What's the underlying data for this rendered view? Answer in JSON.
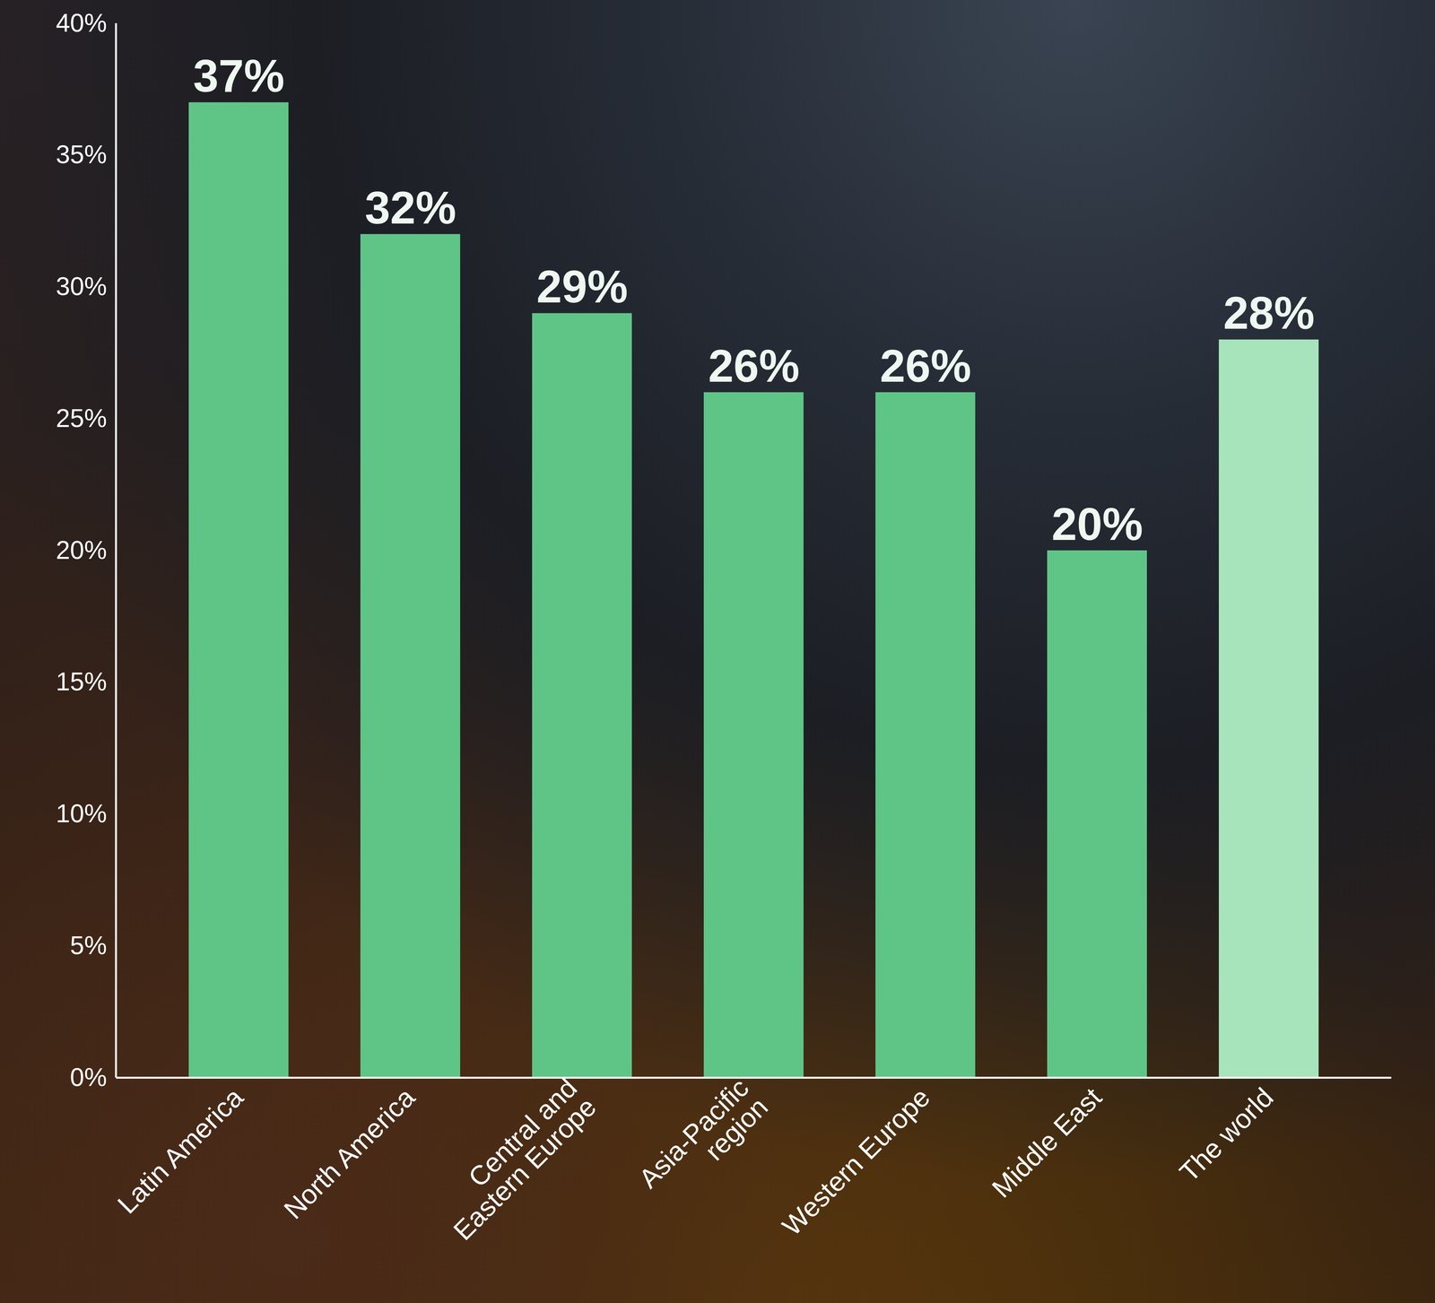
{
  "chart_data": {
    "type": "bar",
    "categories": [
      "Latin America",
      "North America",
      "Central and Eastern Europe",
      "Asia-Pacific region",
      "Western Europe",
      "Middle East",
      "The world"
    ],
    "values": [
      37,
      32,
      29,
      26,
      26,
      20,
      28
    ],
    "value_labels": [
      "37%",
      "32%",
      "29%",
      "26%",
      "26%",
      "20%",
      "28%"
    ],
    "colors": [
      "#5fc587",
      "#5fc587",
      "#5fc587",
      "#5fc587",
      "#5fc587",
      "#5fc587",
      "#a8e4bb"
    ],
    "ylim": [
      0,
      40
    ],
    "yticks": [
      {
        "value": 0,
        "label": "0%"
      },
      {
        "value": 5,
        "label": "5%"
      },
      {
        "value": 10,
        "label": "10%"
      },
      {
        "value": 15,
        "label": "15%"
      },
      {
        "value": 20,
        "label": "20%"
      },
      {
        "value": 25,
        "label": "25%"
      },
      {
        "value": 30,
        "label": "30%"
      },
      {
        "value": 35,
        "label": "35%"
      },
      {
        "value": 40,
        "label": "40%"
      }
    ],
    "data_labels": true,
    "grid": false
  }
}
